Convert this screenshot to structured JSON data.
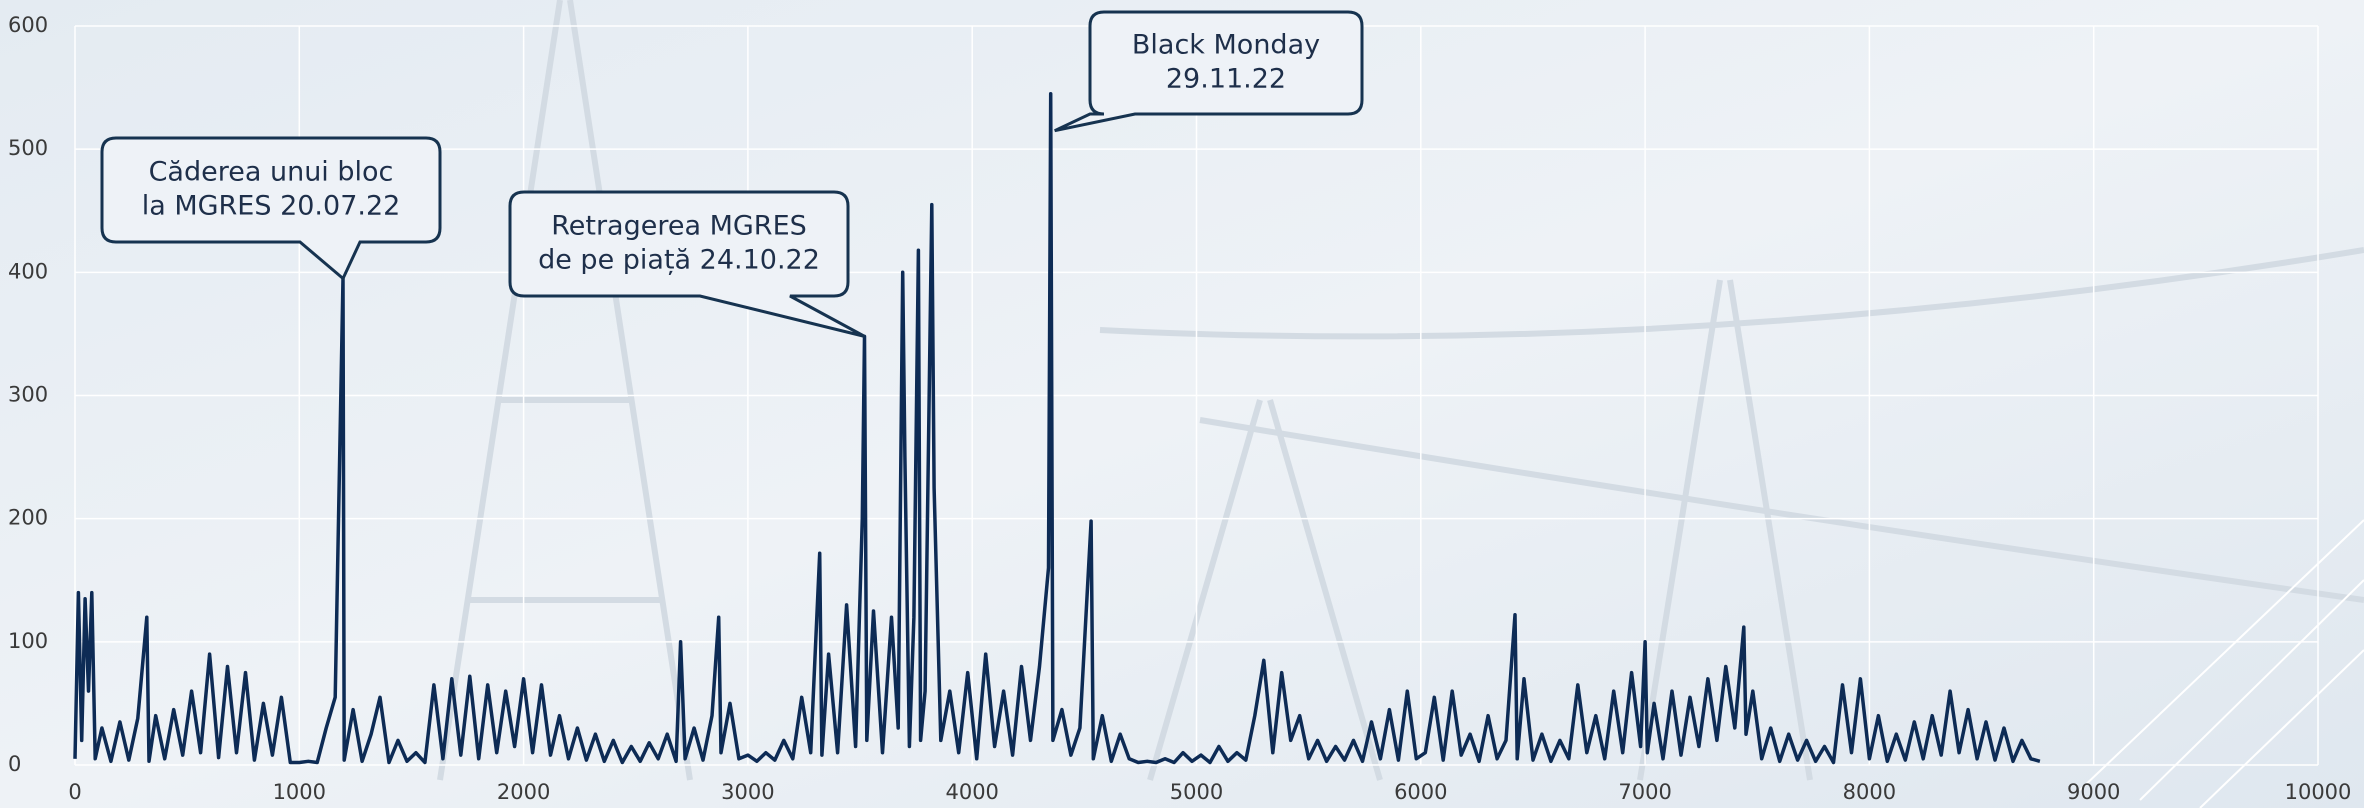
{
  "chart_data": {
    "type": "line",
    "x": [
      0,
      15,
      30,
      45,
      60,
      75,
      90,
      120,
      160,
      200,
      240,
      280,
      320,
      330,
      360,
      400,
      440,
      480,
      520,
      560,
      600,
      640,
      680,
      720,
      760,
      800,
      840,
      880,
      920,
      960,
      1000,
      1040,
      1080,
      1120,
      1160,
      1195,
      1200,
      1240,
      1280,
      1320,
      1360,
      1400,
      1440,
      1480,
      1520,
      1560,
      1600,
      1640,
      1680,
      1720,
      1760,
      1800,
      1840,
      1880,
      1920,
      1960,
      2000,
      2040,
      2080,
      2120,
      2160,
      2200,
      2240,
      2280,
      2320,
      2360,
      2400,
      2440,
      2480,
      2520,
      2560,
      2600,
      2640,
      2680,
      2700,
      2720,
      2760,
      2800,
      2840,
      2870,
      2880,
      2920,
      2960,
      3000,
      3040,
      3080,
      3120,
      3160,
      3200,
      3240,
      3280,
      3320,
      3330,
      3360,
      3400,
      3440,
      3480,
      3510,
      3520,
      3530,
      3560,
      3600,
      3640,
      3670,
      3690,
      3700,
      3720,
      3740,
      3760,
      3770,
      3790,
      3820,
      3830,
      3860,
      3900,
      3940,
      3980,
      4020,
      4060,
      4100,
      4140,
      4180,
      4220,
      4260,
      4300,
      4340,
      4350,
      4360,
      4400,
      4440,
      4480,
      4530,
      4540,
      4580,
      4620,
      4660,
      4700,
      4740,
      4780,
      4820,
      4860,
      4900,
      4940,
      4980,
      5020,
      5060,
      5100,
      5140,
      5180,
      5220,
      5260,
      5300,
      5340,
      5380,
      5420,
      5460,
      5500,
      5540,
      5580,
      5620,
      5660,
      5700,
      5740,
      5780,
      5820,
      5860,
      5900,
      5940,
      5980,
      6020,
      6060,
      6100,
      6140,
      6180,
      6220,
      6260,
      6300,
      6340,
      6380,
      6420,
      6430,
      6460,
      6500,
      6540,
      6580,
      6620,
      6660,
      6700,
      6740,
      6780,
      6820,
      6860,
      6900,
      6940,
      6980,
      7000,
      7010,
      7040,
      7080,
      7120,
      7160,
      7200,
      7240,
      7280,
      7320,
      7360,
      7400,
      7440,
      7450,
      7480,
      7520,
      7560,
      7600,
      7640,
      7680,
      7720,
      7760,
      7800,
      7840,
      7880,
      7920,
      7960,
      8000,
      8040,
      8080,
      8120,
      8160,
      8200,
      8240,
      8280,
      8320,
      8360,
      8400,
      8440,
      8480,
      8520,
      8560,
      8600,
      8640,
      8680,
      8720,
      8760
    ],
    "values": [
      5,
      140,
      20,
      135,
      60,
      140,
      5,
      30,
      3,
      35,
      4,
      38,
      120,
      3,
      40,
      5,
      45,
      8,
      60,
      10,
      90,
      6,
      80,
      10,
      75,
      4,
      50,
      8,
      55,
      2,
      2,
      3,
      2,
      30,
      55,
      395,
      4,
      45,
      3,
      25,
      55,
      2,
      20,
      3,
      10,
      2,
      65,
      5,
      70,
      8,
      72,
      5,
      65,
      10,
      60,
      15,
      70,
      10,
      65,
      8,
      40,
      5,
      30,
      4,
      25,
      3,
      20,
      2,
      15,
      3,
      18,
      5,
      25,
      3,
      100,
      5,
      30,
      4,
      40,
      120,
      10,
      50,
      5,
      8,
      3,
      10,
      4,
      20,
      5,
      55,
      10,
      172,
      8,
      90,
      10,
      130,
      15,
      200,
      348,
      20,
      125,
      10,
      120,
      30,
      400,
      250,
      15,
      120,
      418,
      20,
      60,
      455,
      225,
      20,
      60,
      10,
      75,
      5,
      90,
      15,
      60,
      8,
      80,
      20,
      80,
      160,
      545,
      20,
      45,
      8,
      30,
      198,
      5,
      40,
      3,
      25,
      5,
      2,
      3,
      2,
      5,
      2,
      10,
      3,
      8,
      2,
      15,
      3,
      10,
      4,
      40,
      85,
      10,
      75,
      20,
      40,
      5,
      20,
      3,
      15,
      4,
      20,
      3,
      35,
      5,
      45,
      4,
      60,
      5,
      10,
      55,
      4,
      60,
      8,
      25,
      3,
      40,
      5,
      20,
      122,
      5,
      70,
      4,
      25,
      3,
      20,
      5,
      65,
      10,
      40,
      5,
      60,
      10,
      75,
      15,
      100,
      10,
      50,
      5,
      60,
      8,
      55,
      15,
      70,
      20,
      80,
      30,
      112,
      25,
      60,
      5,
      30,
      3,
      25,
      4,
      20,
      3,
      15,
      2,
      65,
      10,
      70,
      5,
      40,
      3,
      25,
      4,
      35,
      5,
      40,
      8,
      60,
      10,
      45,
      5,
      35,
      4,
      30,
      3,
      20,
      5,
      3
    ],
    "color": "#0d2b55",
    "xlim": [
      0,
      10000
    ],
    "xticks": [
      0,
      1000,
      2000,
      3000,
      4000,
      5000,
      6000,
      7000,
      8000,
      9000,
      10000
    ],
    "ylim": [
      0,
      600
    ],
    "yticks": [
      0,
      100,
      200,
      300,
      400,
      500,
      600
    ],
    "grid": true,
    "annotations": [
      {
        "text": [
          "Căderea unui bloc",
          "la MGRES 20.07.22"
        ],
        "x": 1195,
        "y": 395
      },
      {
        "text": [
          "Retragerea MGRES",
          "de pe piață 24.10.22"
        ],
        "x": 3520,
        "y": 348
      },
      {
        "text": [
          "Black Monday",
          "29.11.22"
        ],
        "x": 4350,
        "y": 515
      }
    ]
  }
}
